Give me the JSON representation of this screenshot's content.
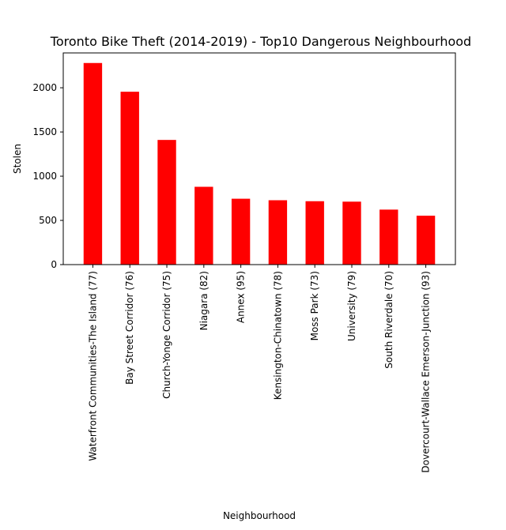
{
  "chart_data": {
    "type": "bar",
    "title": "Toronto Bike Theft (2014-2019) - Top10 Dangerous Neighbourhood",
    "xlabel": "Neighbourhood",
    "ylabel": "Stolen",
    "categories": [
      "Waterfront Communities-The Island (77)",
      "Bay Street Corridor (76)",
      "Church-Yonge Corridor (75)",
      "Niagara (82)",
      "Annex (95)",
      "Kensington-Chinatown (78)",
      "Moss Park (73)",
      "University (79)",
      "South Riverdale (70)",
      "Dovercourt-Wallace Emerson-Junction (93)"
    ],
    "values": [
      2280,
      1955,
      1410,
      880,
      745,
      728,
      717,
      712,
      622,
      553
    ],
    "ylim": [
      0,
      2394
    ],
    "yticks": [
      0,
      500,
      1000,
      1500,
      2000
    ],
    "bar_color": "#ff0000",
    "grid": false,
    "legend": "none"
  }
}
